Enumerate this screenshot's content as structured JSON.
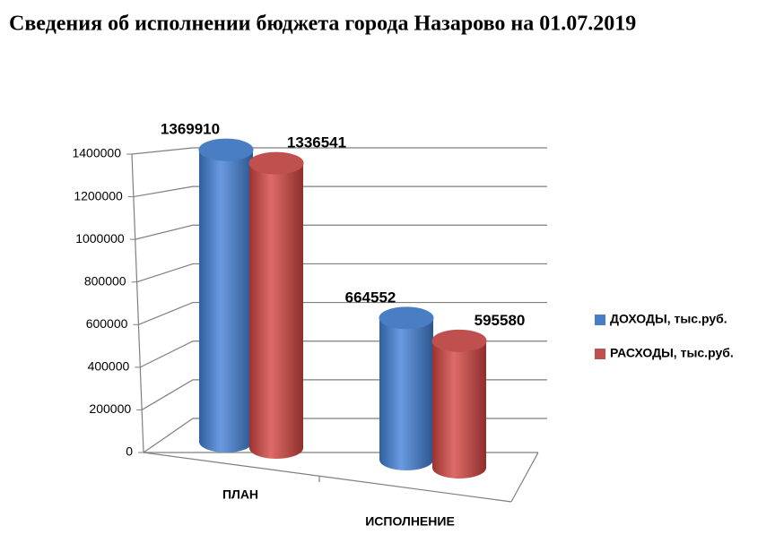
{
  "chart_data": {
    "type": "bar3d",
    "title": "Сведения об исполнении бюджета города Назарово на 01.07.2019",
    "categories": [
      "ПЛАН",
      "ИСПОЛНЕНИЕ"
    ],
    "series": [
      {
        "name": "ДОХОДЫ, тыс.руб.",
        "color": "#4a7ec4",
        "values": [
          1369910,
          664552
        ]
      },
      {
        "name": "РАСХОДЫ, тыс.руб.",
        "color": "#c0504d",
        "values": [
          1336541,
          595580
        ]
      }
    ],
    "ylim": [
      0,
      1400000
    ],
    "yticks": [
      0,
      200000,
      400000,
      600000,
      800000,
      1000000,
      1200000,
      1400000
    ],
    "grid": true,
    "legend": "right"
  }
}
